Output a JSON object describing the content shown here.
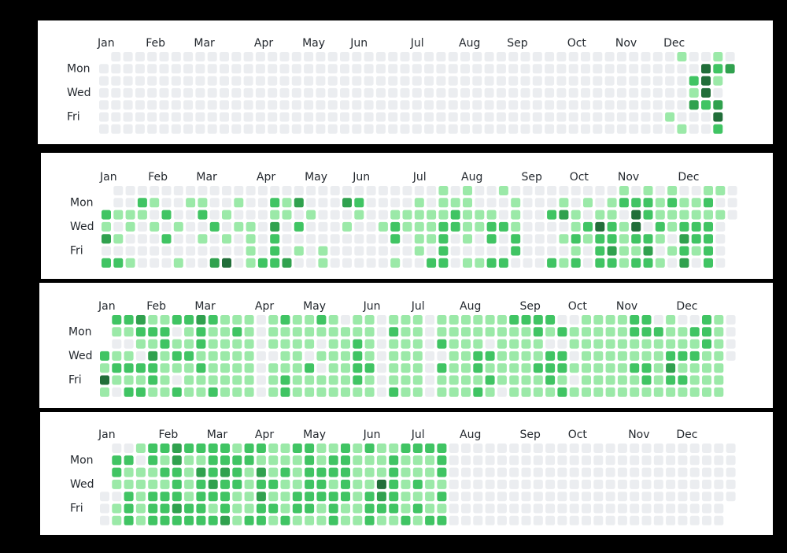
{
  "weekday_labels": [
    "Mon",
    "Wed",
    "Fri"
  ],
  "palette": [
    "#ebedf0",
    "#9be9a8",
    "#40c463",
    "#30a14e",
    "#216e39"
  ],
  "chart_data": [
    {
      "type": "heatmap",
      "name": "contribution-calendar-1",
      "month_labels": [
        "Jan",
        "Feb",
        "Mar",
        "Apr",
        "May",
        "Jun",
        "Jul",
        "Aug",
        "Sep",
        "Oct",
        "Nov",
        "Dec"
      ],
      "start_weekday": 1,
      "days_in_year": 365,
      "active_weeks": [
        47,
        52
      ],
      "levels_by_week": [
        "0000000",
        "0000000",
        "0000000",
        "0000000",
        "0000000",
        "0000000",
        "0000000",
        "0000000",
        "0000000",
        "0000000",
        "0000000",
        "0000000",
        "0000000",
        "0000000",
        "0000000",
        "0000000",
        "0000000",
        "0000000",
        "0000000",
        "0000000",
        "0000000",
        "0000000",
        "0000000",
        "0000000",
        "0000000",
        "0000000",
        "0000000",
        "0000000",
        "0000000",
        "0000000",
        "0000000",
        "0000000",
        "0000000",
        "0000000",
        "0000000",
        "0000000",
        "0000000",
        "0000000",
        "0000000",
        "0000000",
        "0000000",
        "0000000",
        "0000000",
        "0000000",
        "0000000",
        "0000000",
        "0000000",
        "0000010",
        "1000001",
        "0021300",
        "0444200",
        "1210342",
        "0303233",
        "0112102",
        "0000000"
      ]
    },
    {
      "type": "heatmap",
      "name": "contribution-calendar-2",
      "month_labels": [
        "Jan",
        "Feb",
        "Mar",
        "Apr",
        "May",
        "Jun",
        "Jul",
        "Aug",
        "Sep",
        "Oct",
        "Nov",
        "Dec"
      ],
      "start_weekday": 2,
      "days_in_year": 365,
      "levels_by_week": [
        "0021302",
        "0010102",
        "0011001",
        "0210000",
        "0101000",
        "0020200",
        "0001001",
        "0100000",
        "0120100",
        "0002003",
        "0010104",
        "0101000",
        "0001111",
        "0000002",
        "0213222",
        "0110003",
        "0302010",
        "0010000",
        "0000011",
        "0000000",
        "0301000",
        "0210000",
        "0000000",
        "0001000",
        "0012201",
        "0011000",
        "0111110",
        "0011102",
        "1112222",
        "0122000",
        "1111101",
        "0011001",
        "0012202",
        "1002002",
        "0111220",
        "0000000",
        "0000000",
        "0020002",
        "0130101",
        "0011212",
        "0102100",
        "0014222",
        "0112232",
        "1201111",
        "0244212",
        "1220232",
        "0112101",
        "1211010",
        "0112323",
        "0112210",
        "1212222",
        "1010000",
        "0000000"
      ]
    },
    {
      "type": "heatmap",
      "name": "contribution-calendar-3",
      "month_labels": [
        "Jan",
        "Feb",
        "Mar",
        "Apr",
        "May",
        "Jun",
        "Jul",
        "Aug",
        "Sep",
        "Oct",
        "Nov",
        "Dec"
      ],
      "start_weekday": 3,
      "days_in_year": 365,
      "levels_by_week": [
        "0012141",
        "2101210",
        "2101212",
        "3210212",
        "1213221",
        "1221111",
        "2012102",
        "2112111",
        "3221211",
        "2111112",
        "1111111",
        "1211111",
        "1111111",
        "0000000",
        "1110111",
        "2111122",
        "1111111",
        "1110211",
        "2101011",
        "1111111",
        "0111111",
        "1122221",
        "1111211",
        "0000000",
        "1211112",
        "1111111",
        "1111111",
        "0000000",
        "1120211",
        "1111111",
        "1111111",
        "1112212",
        "1102121",
        "1111110",
        "2111111",
        "2111111",
        "2211211",
        "2102221",
        "0202212",
        "0110101",
        "1111111",
        "1111111",
        "1111111",
        "1111111",
        "2211211",
        "2211221",
        "0211111",
        "1112321",
        "0112121",
        "0212111",
        "2221111",
        "1111111",
        "0000000"
      ]
    },
    {
      "type": "heatmap",
      "name": "contribution-calendar-4",
      "month_labels": [
        "Jan",
        "Feb",
        "Mar",
        "Apr",
        "May",
        "Jun",
        "Jul",
        "Aug",
        "Sep",
        "Oct",
        "Nov",
        "Dec"
      ],
      "start_weekday": 4,
      "days_in_year": 365,
      "active_weeks": [
        0,
        28
      ],
      "levels_by_week": [
        "0000000",
        "0221011",
        "0211222",
        "1011111",
        "2211222",
        "2121222",
        "3322232",
        "2111122",
        "2132222",
        "2223212",
        "2232223",
        "1222111",
        "2211112",
        "2132322",
        "1112121",
        "1121112",
        "2111221",
        "2222221",
        "1122211",
        "1221222",
        "2222211",
        "1111111",
        "2111222",
        "1114321",
        "1222221",
        "2111112",
        "2112121",
        "2111112",
        "2221212",
        "0000000",
        "0000000",
        "0000000",
        "0000000",
        "0000000",
        "0000000",
        "0000000",
        "0000000",
        "0000000",
        "0000000",
        "0000000",
        "0000000",
        "0000000",
        "0000000",
        "0000000",
        "0000000",
        "0000000",
        "0000000",
        "0000000",
        "0000000",
        "0000000",
        "0000000",
        "0000000",
        "0000000"
      ]
    }
  ]
}
